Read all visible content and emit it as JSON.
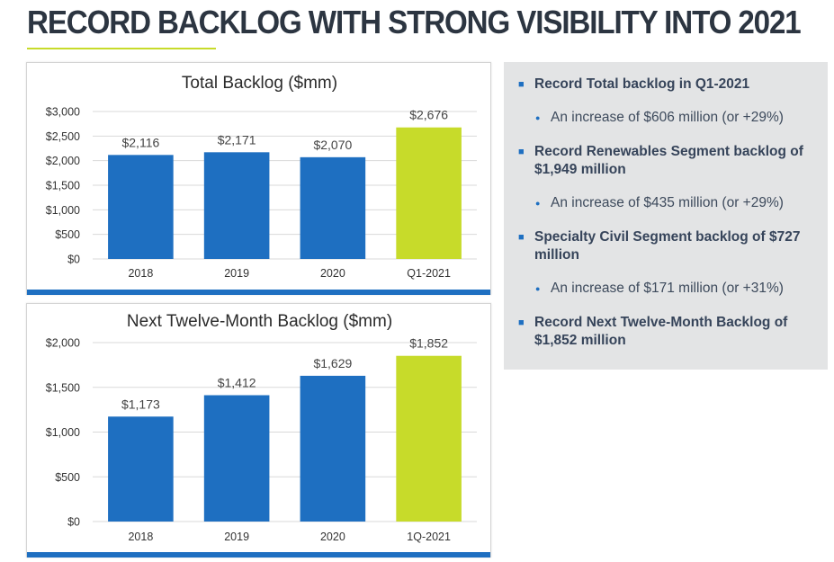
{
  "slide": {
    "title": "RECORD BACKLOG WITH STRONG VISIBILITY INTO 2021",
    "accent_color": "#c7db2a",
    "bar_color": "#1e6fc1",
    "highlight_color": "#c7db2a"
  },
  "chart_data": [
    {
      "type": "bar",
      "title": "Total Backlog ($mm)",
      "categories": [
        "2018",
        "2019",
        "2020",
        "Q1-2021"
      ],
      "values": [
        2116,
        2171,
        2070,
        2676
      ],
      "data_labels": [
        "$2,116",
        "$2,171",
        "$2,070",
        "$2,676"
      ],
      "ylim": [
        0,
        3000
      ],
      "yticks": [
        0,
        500,
        1000,
        1500,
        2000,
        2500,
        3000
      ],
      "ytick_labels": [
        "$0",
        "$500",
        "$1,000",
        "$1,500",
        "$2,000",
        "$2,500",
        "$3,000"
      ],
      "highlight_index": 3,
      "grid": true,
      "legend": "none"
    },
    {
      "type": "bar",
      "title": "Next Twelve-Month Backlog ($mm)",
      "categories": [
        "2018",
        "2019",
        "2020",
        "1Q-2021"
      ],
      "values": [
        1173,
        1412,
        1629,
        1852
      ],
      "data_labels": [
        "$1,173",
        "$1,412",
        "$1,629",
        "$1,852"
      ],
      "ylim": [
        0,
        2000
      ],
      "yticks": [
        0,
        500,
        1000,
        1500,
        2000
      ],
      "ytick_labels": [
        "$0",
        "$500",
        "$1,000",
        "$1,500",
        "$2,000"
      ],
      "highlight_index": 3,
      "grid": true,
      "legend": "none"
    }
  ],
  "summary": {
    "bullets": [
      {
        "level": 1,
        "text": "Record Total backlog in Q1-2021"
      },
      {
        "level": 2,
        "text": "An increase of $606 million (or +29%)"
      },
      {
        "level": 1,
        "text": "Record Renewables Segment backlog of $1,949 million"
      },
      {
        "level": 2,
        "text": "An increase of $435 million (or +29%)"
      },
      {
        "level": 1,
        "text": "Specialty Civil Segment backlog of $727 million"
      },
      {
        "level": 2,
        "text": "An increase of $171 million (or +31%)"
      },
      {
        "level": 1,
        "text": "Record Next Twelve-Month Backlog of $1,852 million"
      }
    ]
  }
}
